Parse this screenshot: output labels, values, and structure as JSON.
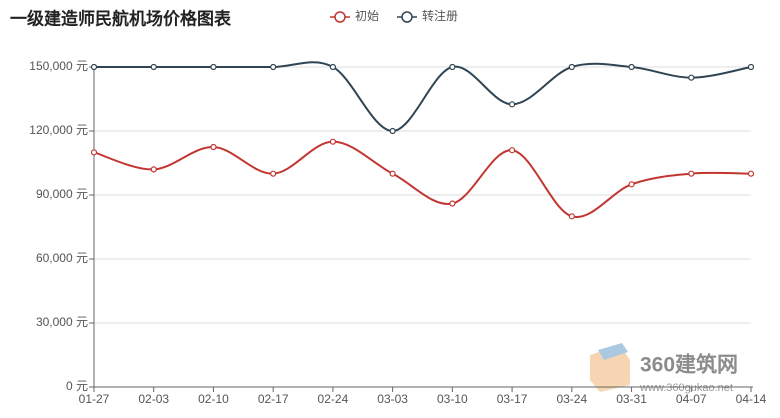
{
  "chart_data": {
    "type": "line",
    "title": "一级建造师民航机场价格图表",
    "categories": [
      "01-27",
      "02-03",
      "02-10",
      "02-17",
      "02-24",
      "03-03",
      "03-10",
      "03-17",
      "03-24",
      "03-31",
      "04-07",
      "04-14"
    ],
    "series": [
      {
        "name": "初始",
        "color": "#c23531",
        "values": [
          110000,
          102000,
          112500,
          100000,
          115000,
          100000,
          86000,
          111000,
          80000,
          95000,
          100000,
          100000
        ]
      },
      {
        "name": "转注册",
        "color": "#2f4554",
        "values": [
          150000,
          150000,
          150000,
          150000,
          150000,
          120000,
          150000,
          132500,
          150000,
          150000,
          145000,
          150000
        ]
      }
    ],
    "ylim": [
      0,
      150000
    ],
    "yticks": [
      {
        "value": 0,
        "label": "0 元"
      },
      {
        "value": 30000,
        "label": "30,000 元"
      },
      {
        "value": 60000,
        "label": "60,000 元"
      },
      {
        "value": 90000,
        "label": "90,000 元"
      },
      {
        "value": 120000,
        "label": "120,000 元"
      },
      {
        "value": 150000,
        "label": "150,000 元"
      }
    ],
    "grid": true,
    "smooth": true,
    "watermark": {
      "name": "360建筑网",
      "url": "www.360gukao.net"
    }
  }
}
